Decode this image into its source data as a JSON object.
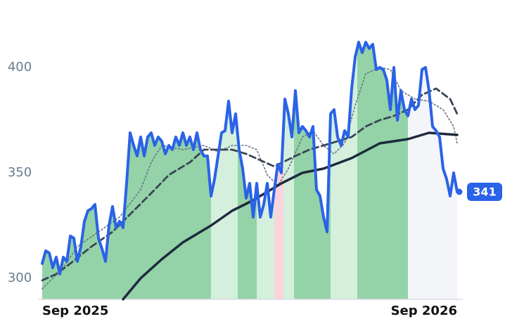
{
  "chart_data": {
    "type": "line",
    "xlim": [
      -1,
      119.6
    ],
    "ylim": [
      290,
      425
    ],
    "yticks": [
      300,
      350,
      400
    ],
    "xticks": [
      {
        "value": 0,
        "label": "Sep 2025"
      },
      {
        "value": 118,
        "label": "Sep 2026"
      }
    ],
    "regions": [
      {
        "start": 0,
        "end": 48,
        "color": "#93d3a7"
      },
      {
        "start": 48,
        "end": 55.6,
        "color": "#d4efdc"
      },
      {
        "start": 55.6,
        "end": 61,
        "color": "#93d3a7"
      },
      {
        "start": 61,
        "end": 66,
        "color": "#d4efdc"
      },
      {
        "start": 66,
        "end": 68.6,
        "color": "#fbd3dc"
      },
      {
        "start": 68.6,
        "end": 71.6,
        "color": "#d4efdc"
      },
      {
        "start": 71.6,
        "end": 82,
        "color": "#93d3a7"
      },
      {
        "start": 82,
        "end": 89.6,
        "color": "#d4efdc"
      },
      {
        "start": 89.6,
        "end": 104,
        "color": "#93d3a7"
      },
      {
        "start": 104,
        "end": 119,
        "color": "#f4f5f9"
      }
    ],
    "series": [
      {
        "style": "dotted",
        "color": "#6b7688",
        "x": [
          0,
          6,
          10,
          16,
          22,
          28,
          31,
          34,
          40,
          46,
          50,
          54,
          58,
          61,
          64,
          67,
          70,
          74,
          77,
          80,
          83,
          86,
          89,
          92,
          96,
          99,
          102,
          106,
          110,
          114,
          117,
          118
        ],
        "values": [
          295,
          305,
          315,
          322,
          329,
          342,
          355,
          363,
          361,
          363,
          360,
          363,
          363,
          361,
          349,
          344,
          352,
          367,
          370,
          363,
          359,
          364,
          382,
          397,
          400,
          399,
          389,
          385,
          384,
          380,
          372,
          364
        ]
      },
      {
        "style": "dashed",
        "color": "#3b4556",
        "x": [
          0,
          4,
          8,
          14,
          20,
          26,
          32,
          36,
          42,
          46,
          50,
          54,
          58,
          62,
          66,
          72,
          76,
          82,
          88,
          92,
          96,
          100,
          104,
          108,
          112,
          116,
          118
        ],
        "values": [
          299,
          302,
          307,
          315,
          322,
          332,
          342,
          349,
          355,
          361,
          361,
          361,
          359,
          356,
          353,
          358,
          361,
          364,
          367,
          372,
          375,
          377,
          380,
          387,
          390,
          385,
          378
        ]
      },
      {
        "style": "solid",
        "color": "#1e2a3e",
        "x": [
          23,
          28,
          34,
          40,
          48,
          54,
          60,
          68,
          74,
          80,
          88,
          96,
          104,
          110,
          118
        ],
        "values": [
          290,
          300,
          309,
          317,
          325,
          332,
          337,
          345,
          350,
          352,
          357,
          364,
          366,
          369,
          368
        ]
      },
      {
        "style": "price",
        "color": "#2a62e8",
        "x": [
          0,
          1,
          2,
          3,
          4,
          5,
          6,
          7,
          8,
          9,
          10,
          11,
          12,
          13,
          14,
          15,
          16,
          17,
          18,
          19,
          20,
          21,
          22,
          23,
          24,
          25,
          26,
          27,
          28,
          29,
          30,
          31,
          32,
          33,
          34,
          35,
          36,
          37,
          38,
          39,
          40,
          41,
          42,
          43,
          44,
          45,
          46,
          47,
          48,
          49,
          50,
          51,
          52,
          53,
          54,
          55,
          56,
          57,
          58,
          59,
          60,
          61,
          62,
          63,
          64,
          65,
          66,
          67,
          68,
          69,
          70,
          71,
          72,
          73,
          74,
          75,
          76,
          77,
          78,
          79,
          80,
          81,
          82,
          83,
          84,
          85,
          86,
          87,
          88,
          89,
          90,
          91,
          92,
          93,
          94,
          95,
          96,
          97,
          98,
          99,
          100,
          101,
          102,
          103,
          104,
          105,
          106,
          107,
          108,
          109,
          110,
          111,
          112,
          113,
          114,
          115,
          116,
          117,
          118
        ],
        "values": [
          307,
          313,
          312,
          305,
          310,
          302,
          310,
          308,
          320,
          319,
          308,
          315,
          327,
          332,
          333,
          335,
          319,
          314,
          308,
          325,
          334,
          324,
          327,
          324,
          345,
          369,
          363,
          358,
          367,
          358,
          367,
          369,
          363,
          367,
          365,
          359,
          363,
          361,
          367,
          363,
          369,
          363,
          367,
          361,
          369,
          361,
          358,
          358,
          339,
          347,
          358,
          369,
          370,
          384,
          369,
          378,
          361,
          352,
          338,
          345,
          329,
          345,
          329,
          335,
          345,
          329,
          342,
          354,
          350,
          385,
          378,
          367,
          389,
          369,
          372,
          370,
          367,
          372,
          342,
          339,
          329,
          322,
          378,
          380,
          367,
          363,
          370,
          367,
          390,
          405,
          412,
          407,
          412,
          409,
          411,
          399,
          400,
          399,
          394,
          380,
          400,
          375,
          389,
          380,
          377,
          385,
          380,
          382,
          399,
          400,
          389,
          372,
          370,
          367,
          352,
          347,
          339,
          350,
          341
        ]
      }
    ]
  }
}
